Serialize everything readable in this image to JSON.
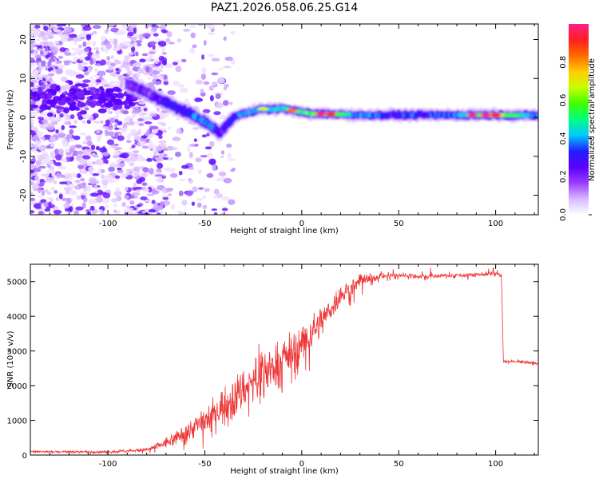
{
  "title": "PAZ1.2026.058.06.25.G14",
  "chart_data": [
    {
      "type": "heatmap",
      "name": "spectrogram",
      "xlabel": "Height of straight line (km)",
      "ylabel": "Frequency (Hz)",
      "xlim": [
        -140,
        122
      ],
      "ylim": [
        -25,
        24
      ],
      "xticks": [
        -100,
        -50,
        0,
        50,
        100
      ],
      "yticks": [
        -20,
        -10,
        0,
        10,
        20
      ],
      "colorbar": {
        "label": "Normalized spectral amplitude",
        "range": [
          0,
          1
        ],
        "ticks": [
          "0.0",
          "0.2",
          "0.4",
          "0.6",
          "0.8"
        ],
        "tick_values": [
          0.0,
          0.2,
          0.4,
          0.6,
          0.8
        ],
        "colors": [
          "#ffffff",
          "#d8b8ff",
          "#9b3dff",
          "#5a00ff",
          "#2020ff",
          "#00c8ff",
          "#00ff80",
          "#40ff00",
          "#c8ff00",
          "#ffcc00",
          "#ff6a00",
          "#ff1f1f",
          "#ff1f8a"
        ]
      },
      "ridge": {
        "x": [
          -90,
          -85,
          -80,
          -75,
          -70,
          -65,
          -60,
          -55,
          -50,
          -45,
          -42,
          -38,
          -35,
          -30,
          -25,
          -20,
          -15,
          -10,
          -5,
          0,
          5,
          10,
          15,
          20,
          30,
          50,
          80,
          100,
          122
        ],
        "y": [
          8.5,
          7.5,
          6.5,
          5.0,
          3.8,
          2.6,
          1.5,
          0.2,
          -1.2,
          -3.0,
          -4.0,
          -1.5,
          0.0,
          1.0,
          1.6,
          2.2,
          2.0,
          2.4,
          1.8,
          1.4,
          0.9,
          0.9,
          0.8,
          0.8,
          0.6,
          0.6,
          0.6,
          0.6,
          0.5
        ],
        "amplitude": [
          0.25,
          0.28,
          0.3,
          0.33,
          0.38,
          0.42,
          0.45,
          0.47,
          0.5,
          0.45,
          0.3,
          0.4,
          0.45,
          0.5,
          0.5,
          0.52,
          0.55,
          0.6,
          0.65,
          0.7,
          0.75,
          0.8,
          0.85,
          0.75,
          0.5,
          0.4,
          0.5,
          0.9,
          0.5
        ]
      }
    },
    {
      "type": "line",
      "name": "snr",
      "xlabel": "Height of straight line (km)",
      "ylabel": "SNR (10 * v/v)",
      "xlim": [
        -140,
        122
      ],
      "ylim": [
        0,
        5500
      ],
      "xticks": [
        -100,
        -50,
        0,
        50,
        100
      ],
      "yticks": [
        0,
        1000,
        2000,
        3000,
        4000,
        5000
      ],
      "color": "#ee3333",
      "envelope": {
        "x": [
          -140,
          -100,
          -80,
          -70,
          -60,
          -50,
          -40,
          -30,
          -20,
          -10,
          0,
          10,
          20,
          30,
          40,
          50,
          60,
          80,
          100,
          103,
          104,
          110,
          122
        ],
        "mean": [
          100,
          90,
          150,
          350,
          650,
          1000,
          1450,
          1900,
          2400,
          2750,
          3200,
          3850,
          4600,
          5000,
          5150,
          5200,
          5150,
          5180,
          5230,
          5150,
          2700,
          2700,
          2650
        ],
        "noise": [
          40,
          40,
          60,
          180,
          300,
          450,
          600,
          700,
          750,
          700,
          650,
          500,
          350,
          200,
          120,
          80,
          70,
          70,
          80,
          80,
          60,
          50,
          50
        ]
      }
    }
  ]
}
